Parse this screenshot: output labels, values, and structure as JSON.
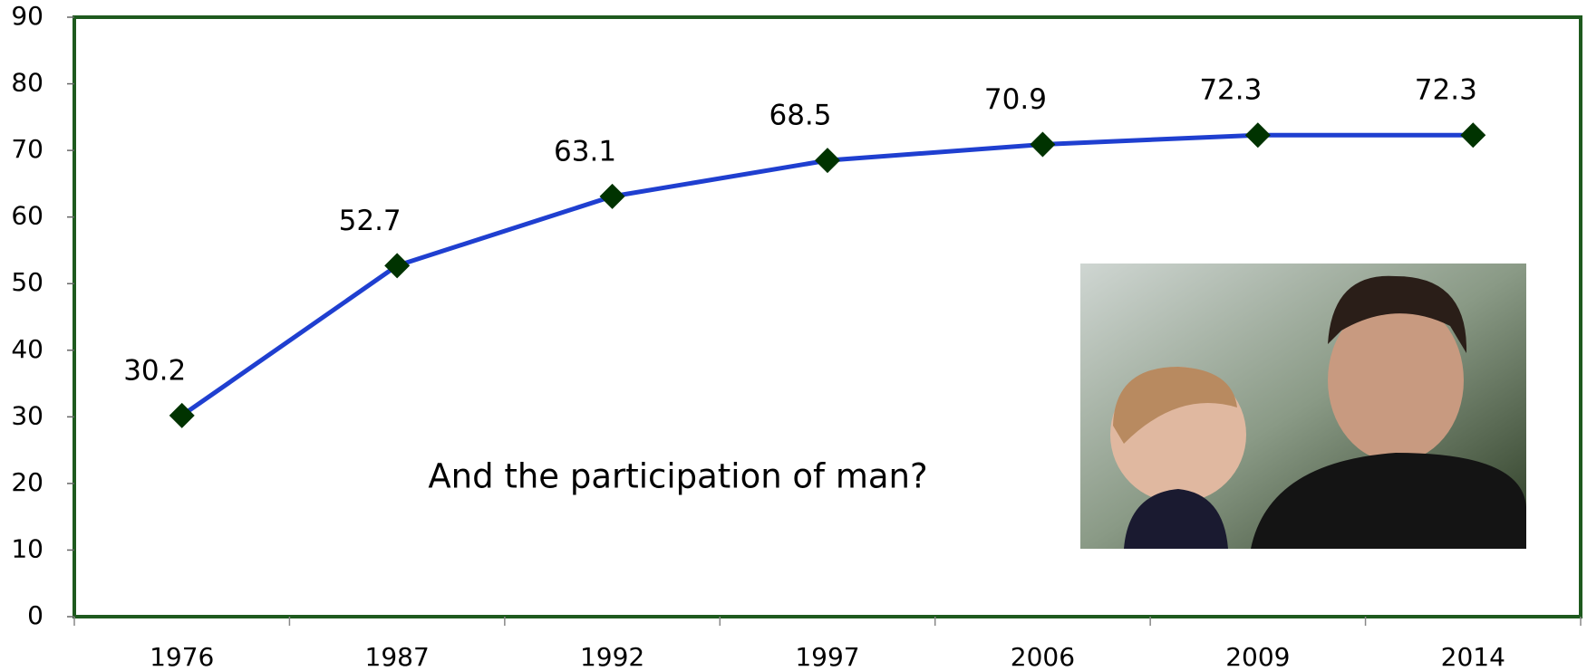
{
  "chart_data": {
    "type": "line",
    "annotation": "And the participation of man?",
    "categories": [
      "1976",
      "1987",
      "1992",
      "1997",
      "2006",
      "2009",
      "2014"
    ],
    "values": [
      30.2,
      52.7,
      63.1,
      68.5,
      70.9,
      72.3,
      72.3
    ],
    "color": "#1f3fd0",
    "marker_color": "#003300",
    "ylim": [
      0,
      90
    ],
    "yticks": [
      0,
      10,
      20,
      30,
      40,
      50,
      60,
      70,
      80,
      90
    ],
    "grid": false
  }
}
